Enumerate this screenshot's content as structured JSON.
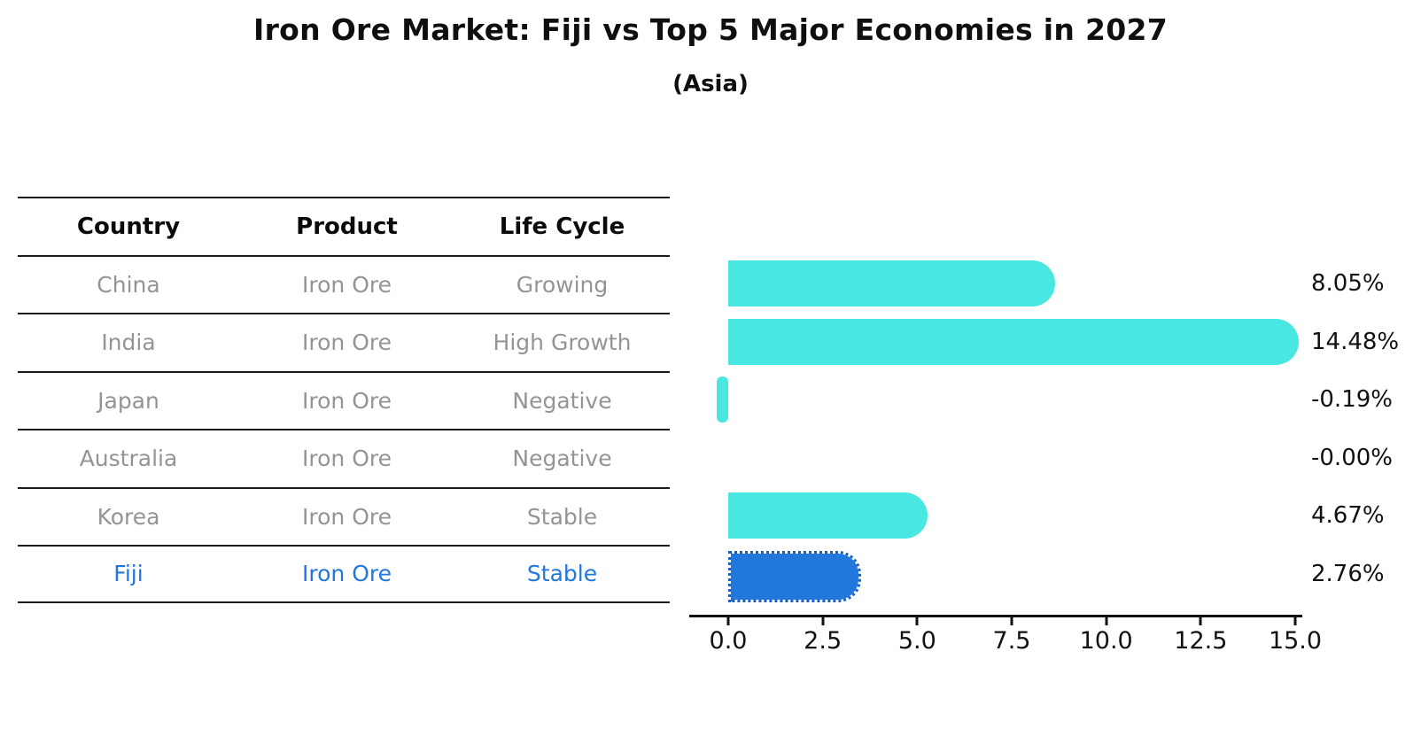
{
  "header": {
    "title": "Iron Ore Market: Fiji vs Top 5 Major Economies in 2027",
    "subtitle": "(Asia)"
  },
  "table": {
    "columns": [
      "Country",
      "Product",
      "Life Cycle"
    ],
    "rows": [
      {
        "country": "China",
        "product": "Iron Ore",
        "life_cycle": "Growing",
        "highlight": false
      },
      {
        "country": "India",
        "product": "Iron Ore",
        "life_cycle": "High Growth",
        "highlight": false
      },
      {
        "country": "Japan",
        "product": "Iron Ore",
        "life_cycle": "Negative",
        "highlight": false
      },
      {
        "country": "Australia",
        "product": "Iron Ore",
        "life_cycle": "Negative",
        "highlight": false
      },
      {
        "country": "Korea",
        "product": "Iron Ore",
        "life_cycle": "Stable",
        "highlight": false
      },
      {
        "country": "Fiji",
        "product": "Iron Ore",
        "life_cycle": "Stable",
        "highlight": true
      }
    ]
  },
  "chart_data": {
    "type": "bar",
    "orientation": "horizontal",
    "title": "Iron Ore Market: Fiji vs Top 5 Major Economies in 2027",
    "subtitle": "(Asia)",
    "categories": [
      "China",
      "India",
      "Japan",
      "Australia",
      "Korea",
      "Fiji"
    ],
    "values": [
      8.05,
      14.48,
      -0.19,
      -0.0,
      4.67,
      2.76
    ],
    "value_labels": [
      "8.05%",
      "14.48%",
      "-0.19%",
      "-0.00%",
      "4.67%",
      "2.76%"
    ],
    "x_ticks": [
      0.0,
      2.5,
      5.0,
      7.5,
      10.0,
      12.5,
      15.0
    ],
    "x_tick_labels": [
      "0.0",
      "2.5",
      "5.0",
      "7.5",
      "10.0",
      "12.5",
      "15.0"
    ],
    "xlim": [
      -1.0,
      15.2
    ],
    "grid": false,
    "legend": false,
    "bar_color": "#48e7e1",
    "highlight_color": "#2277dd",
    "highlight_text_color": "#2878d8",
    "highlight_index": 5
  }
}
